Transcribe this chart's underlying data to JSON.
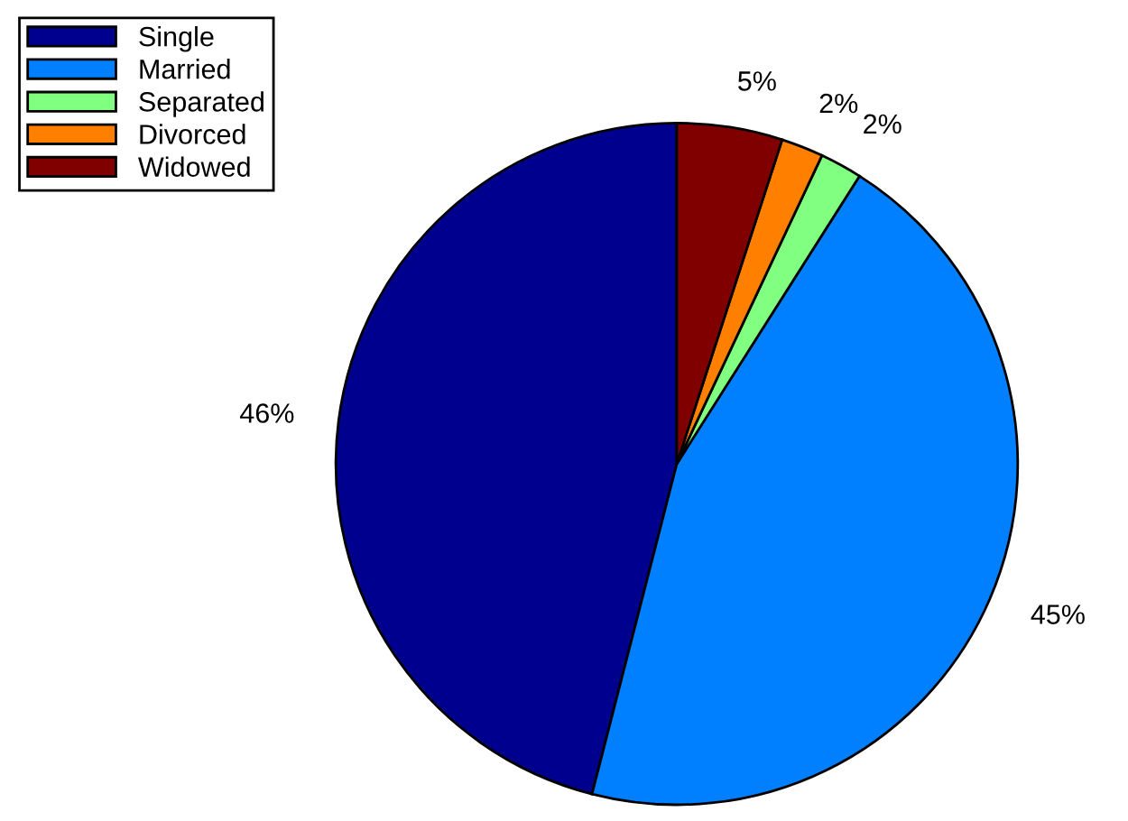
{
  "chart_data": {
    "type": "pie",
    "categories": [
      "Single",
      "Married",
      "Separated",
      "Divorced",
      "Widowed"
    ],
    "values": [
      46,
      45,
      2,
      2,
      5
    ],
    "colors": [
      "#00008f",
      "#0080ff",
      "#80ff80",
      "#ff8000",
      "#800000"
    ],
    "value_labels": [
      "46%",
      "45%",
      "2%",
      "2%",
      "5%"
    ],
    "legend": "top left"
  }
}
